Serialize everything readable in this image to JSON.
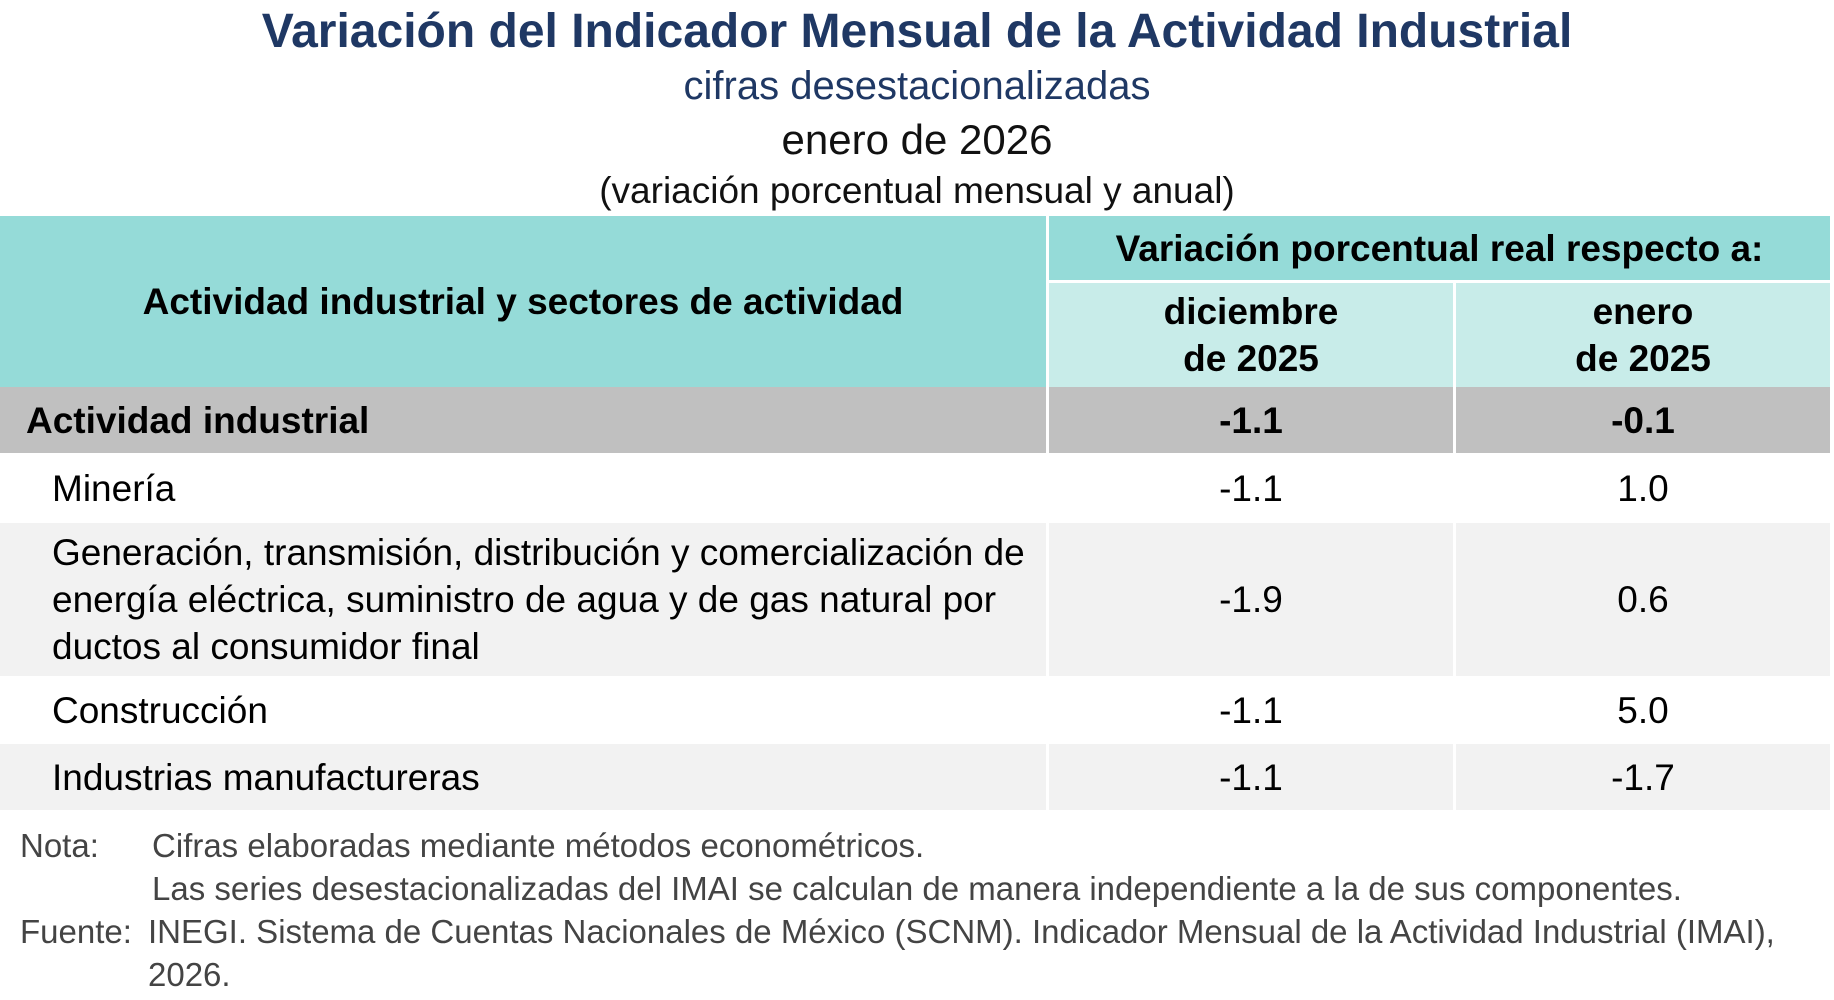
{
  "header": {
    "title": "Variación del Indicador Mensual de la Actividad Industrial",
    "subtitle": "cifras desestacionalizadas",
    "period": "enero de 2026",
    "unit": "(variación porcentual mensual y anual)"
  },
  "table": {
    "corner": "Actividad industrial y sectores de actividad",
    "group": "Variación porcentual real respecto a:",
    "columns": [
      "diciembre de 2025",
      "enero de 2025"
    ],
    "rows": [
      [
        "Actividad industrial",
        "-1.1",
        "-0.1"
      ],
      [
        "Minería",
        "-1.1",
        "1.0"
      ],
      [
        "Generación, transmisión, distribución y comercialización de energía eléctrica, suministro de agua y de gas natural por ductos al consumidor final",
        "-1.9",
        "0.6"
      ],
      [
        "Construcción",
        "-1.1",
        "5.0"
      ],
      [
        "Industrias manufactureras",
        "-1.1",
        "-1.7"
      ]
    ]
  },
  "notes": {
    "note_label": "Nota:",
    "note_lines": [
      "Cifras elaboradas mediante métodos econométricos.",
      "Las series desestacionalizadas del IMAI se calculan de manera independiente a la de sus componentes."
    ],
    "source_label": "Fuente:",
    "source": "INEGI. Sistema de Cuentas Nacionales de México (SCNM). Indicador Mensual de la Actividad Industrial (IMAI), 2026."
  }
}
